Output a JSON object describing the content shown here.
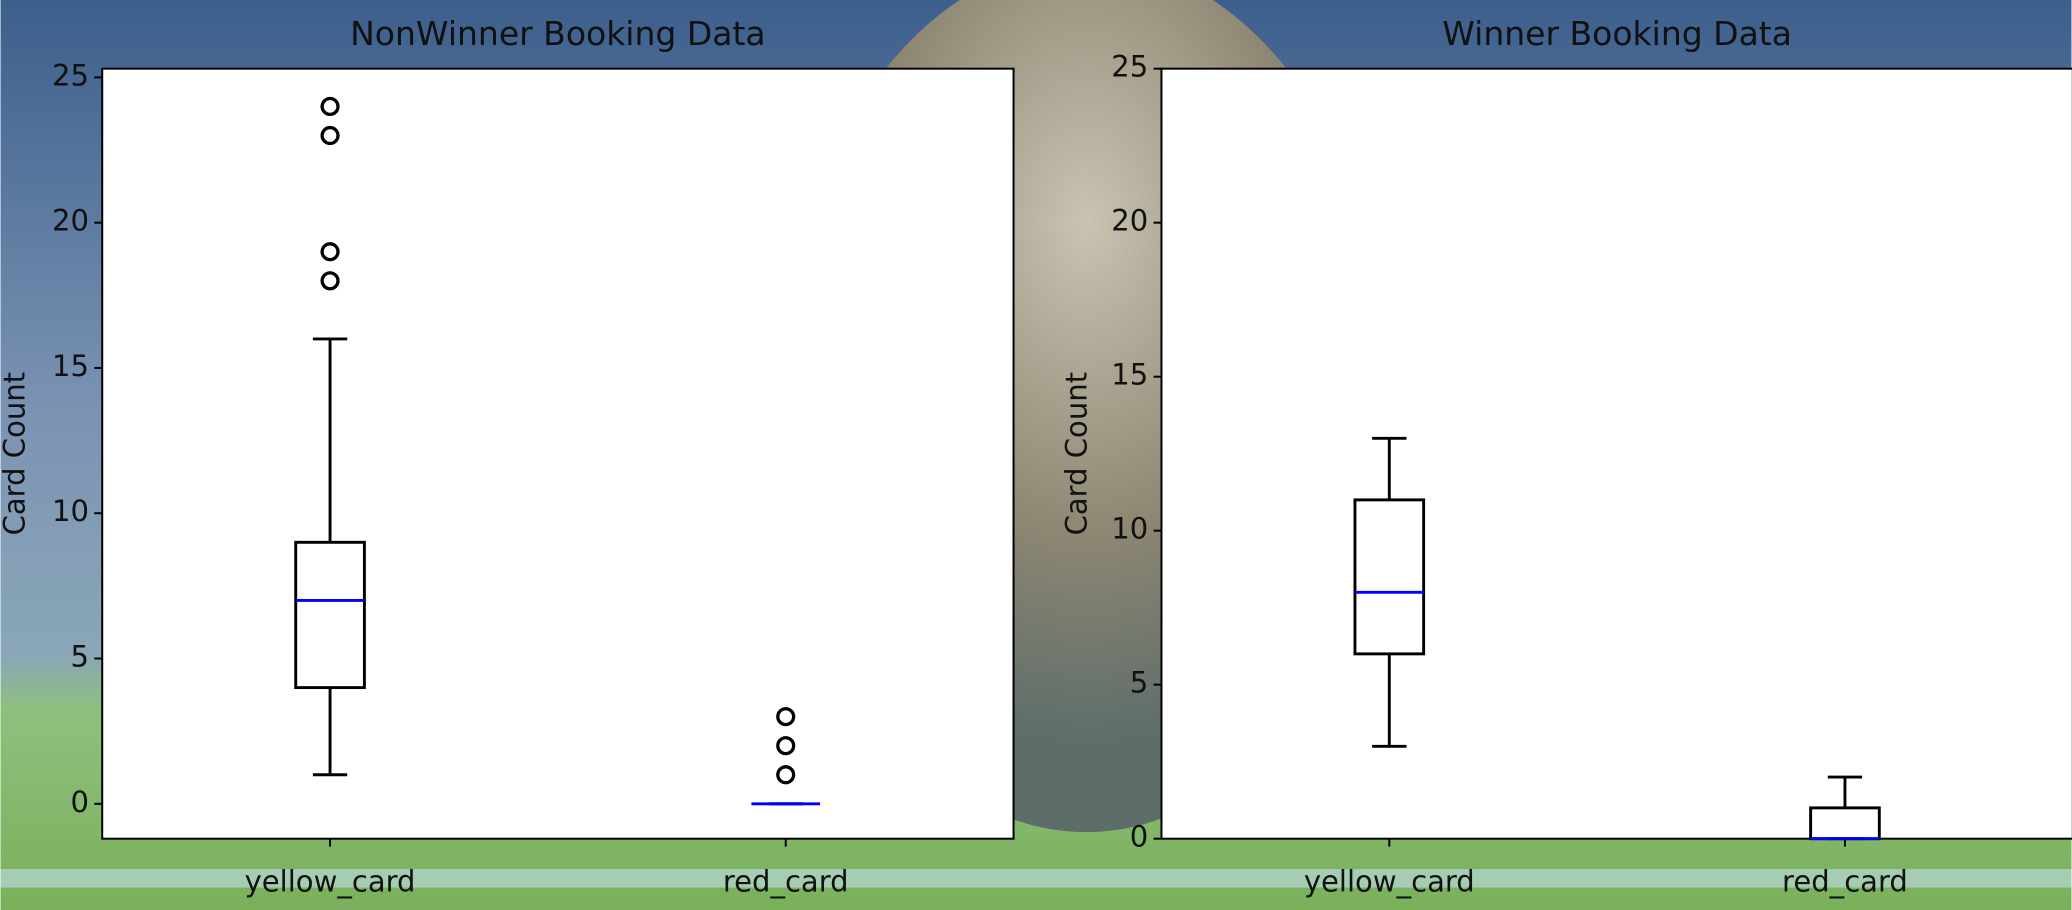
{
  "chart_data": [
    {
      "type": "box",
      "title": "NonWinner Booking Data",
      "ylabel": "Card Count",
      "categories": [
        "yellow_card",
        "red_card"
      ],
      "boxes": [
        {
          "whislo": 1,
          "q1": 4,
          "med": 7,
          "q3": 9,
          "whishi": 16,
          "fliers": [
            18,
            19,
            23,
            24
          ]
        },
        {
          "whislo": 0,
          "q1": 0,
          "med": 0,
          "q3": 0,
          "whishi": 0,
          "fliers": [
            1,
            2,
            3
          ]
        }
      ],
      "box_color": "#000000",
      "median_color": "#0000ff",
      "ylim": [
        -1.2,
        25.3
      ],
      "yticks": [
        0,
        5,
        10,
        15,
        20,
        25
      ]
    },
    {
      "type": "box",
      "title": "Winner Booking Data",
      "ylabel": "Card Count",
      "categories": [
        "yellow_card",
        "red_card"
      ],
      "boxes": [
        {
          "whislo": 3,
          "q1": 6,
          "med": 8,
          "q3": 11,
          "whishi": 13,
          "fliers": []
        },
        {
          "whislo": 0,
          "q1": 0,
          "med": 0,
          "q3": 1,
          "whishi": 2,
          "fliers": []
        }
      ],
      "box_color": "#000000",
      "median_color": "#0000ff",
      "ylim": [
        0,
        25
      ],
      "yticks": [
        0,
        5,
        10,
        15,
        20,
        25
      ]
    }
  ]
}
